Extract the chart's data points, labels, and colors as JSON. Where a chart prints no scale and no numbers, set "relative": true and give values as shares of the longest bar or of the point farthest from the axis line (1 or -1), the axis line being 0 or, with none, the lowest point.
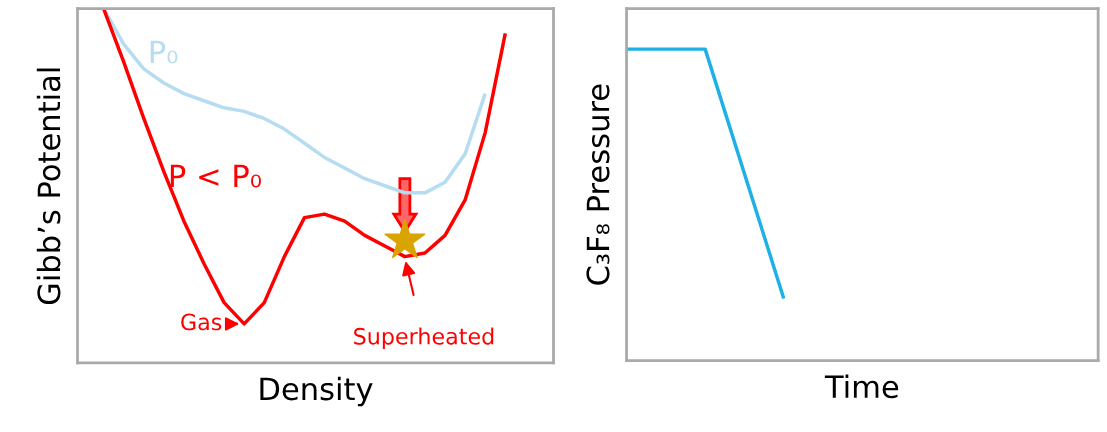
{
  "chart_data": [
    {
      "type": "line",
      "relative": true,
      "xlabel": "Density",
      "ylabel": "Gibb’s Potential",
      "legend": false,
      "categories": [
        null,
        null,
        null,
        null,
        null,
        null,
        null,
        null,
        null,
        null,
        null,
        null,
        null,
        null,
        null,
        null,
        null,
        null,
        null,
        null,
        null
      ],
      "series": [
        {
          "name": "P₀",
          "color": "#b5dcf0",
          "values": [
            1.0,
            0.9,
            0.83,
            0.79,
            0.76,
            0.74,
            0.72,
            0.71,
            0.69,
            0.66,
            0.62,
            0.58,
            0.55,
            0.52,
            0.5,
            0.48,
            0.48,
            0.51,
            0.59,
            0.76,
            null
          ]
        },
        {
          "name": "P < P₀",
          "color": "#ff0000",
          "values": [
            1.0,
            0.85,
            0.69,
            0.54,
            0.4,
            0.28,
            0.17,
            0.11,
            0.17,
            0.3,
            0.41,
            0.42,
            0.4,
            0.36,
            0.33,
            0.3,
            0.31,
            0.36,
            0.46,
            0.65,
            0.93
          ]
        }
      ],
      "annotations": [
        "Gas",
        "Superheated"
      ]
    },
    {
      "type": "line",
      "relative": true,
      "xlabel": "Time",
      "ylabel": "C₃F₈ Pressure",
      "legend": false,
      "categories": [
        null,
        null,
        null,
        null,
        null,
        null,
        null
      ],
      "series": [
        {
          "color": "#1fb0e6",
          "values": [
            1.0,
            1.0,
            0.2,
            null,
            null,
            null,
            null
          ]
        }
      ]
    }
  ]
}
